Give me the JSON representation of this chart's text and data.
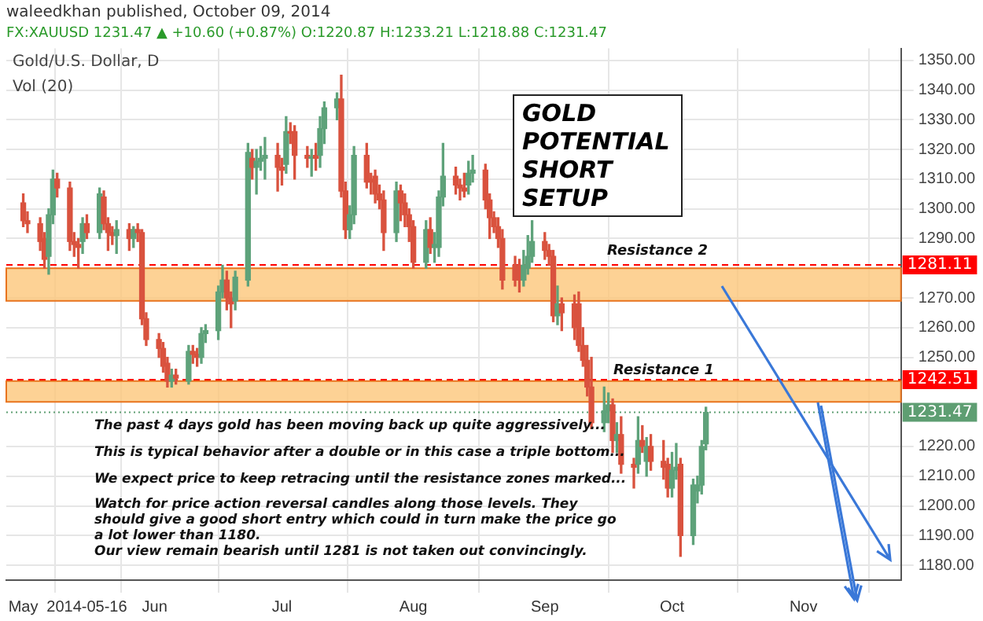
{
  "chart_data": {
    "type": "candlestick",
    "title": "waleedkhan published, October 09, 2014",
    "subtitle": "FX:XAUUSD 1231.47 ▲ +10.60 (+0.87%) O:1220.87 H:1233.21 L:1218.88 C:1231.47",
    "annotations": [
      "Gold/U.S. Dollar, D",
      "Vol (20)",
      "GOLD POTENTIAL SHORT SETUP",
      "The past 4 days gold has been moving back up quite aggressively...",
      "This is typical behavior after a double or in this case a triple bottom...",
      "We expect price to keep retracing until the resistance zones marked...",
      "Watch for price action reversal candles along those levels. They should give a good short entry which could in turn make the price go a lot lower than 1180.",
      "Our view remain bearish until 1281 is not taken out convincingly.",
      "Resistance 2",
      "Resistance 1"
    ],
    "x": [
      "2014-05-01",
      "2014-05-02",
      "2014-05-05",
      "2014-05-06",
      "2014-05-07",
      "2014-05-08",
      "2014-05-09",
      "2014-05-12",
      "2014-05-13",
      "2014-05-14",
      "2014-05-15",
      "2014-05-16",
      "2014-05-19",
      "2014-05-20",
      "2014-05-21",
      "2014-05-22",
      "2014-05-23",
      "2014-05-26",
      "2014-05-27",
      "2014-05-28",
      "2014-05-29",
      "2014-05-30",
      "2014-06-02",
      "2014-06-03",
      "2014-06-04",
      "2014-06-05",
      "2014-06-06",
      "2014-06-09",
      "2014-06-10",
      "2014-06-11",
      "2014-06-12",
      "2014-06-13",
      "2014-06-16",
      "2014-06-17",
      "2014-06-18",
      "2014-06-19",
      "2014-06-20",
      "2014-06-23",
      "2014-06-24",
      "2014-06-25",
      "2014-06-26",
      "2014-06-27",
      "2014-06-30",
      "2014-07-01",
      "2014-07-02",
      "2014-07-03",
      "2014-07-04",
      "2014-07-07",
      "2014-07-08",
      "2014-07-09",
      "2014-07-10",
      "2014-07-11",
      "2014-07-14",
      "2014-07-15",
      "2014-07-16",
      "2014-07-17",
      "2014-07-18",
      "2014-07-21",
      "2014-07-22",
      "2014-07-23",
      "2014-07-24",
      "2014-07-25",
      "2014-07-28",
      "2014-07-29",
      "2014-07-30",
      "2014-07-31",
      "2014-08-01",
      "2014-08-04",
      "2014-08-05",
      "2014-08-06",
      "2014-08-07",
      "2014-08-08",
      "2014-08-11",
      "2014-08-12",
      "2014-08-13",
      "2014-08-14",
      "2014-08-15",
      "2014-08-18",
      "2014-08-19",
      "2014-08-20",
      "2014-08-21",
      "2014-08-22",
      "2014-08-25",
      "2014-08-26",
      "2014-08-27",
      "2014-08-28",
      "2014-08-29",
      "2014-09-01",
      "2014-09-02",
      "2014-09-03",
      "2014-09-04",
      "2014-09-05",
      "2014-09-08",
      "2014-09-09",
      "2014-09-10",
      "2014-09-11",
      "2014-09-12",
      "2014-09-15",
      "2014-09-16",
      "2014-09-17",
      "2014-09-18",
      "2014-09-19",
      "2014-09-22",
      "2014-09-23",
      "2014-09-24",
      "2014-09-25",
      "2014-09-26",
      "2014-09-29",
      "2014-09-30",
      "2014-10-01",
      "2014-10-02",
      "2014-10-03",
      "2014-10-06",
      "2014-10-07",
      "2014-10-08",
      "2014-10-09"
    ],
    "ohlc": [
      [
        1302,
        1305,
        1294,
        1296
      ],
      [
        1296,
        1299,
        1292,
        1295
      ],
      [
        1295,
        1297,
        1286,
        1289
      ],
      [
        1290,
        1292,
        1280,
        1283
      ],
      [
        1284,
        1300,
        1278,
        1298
      ],
      [
        1298,
        1313,
        1295,
        1310
      ],
      [
        1310,
        1312,
        1304,
        1307
      ],
      [
        1307,
        1309,
        1286,
        1289
      ],
      [
        1289,
        1292,
        1284,
        1288
      ],
      [
        1288,
        1290,
        1280,
        1287
      ],
      [
        1289,
        1297,
        1285,
        1295
      ],
      [
        1295,
        1298,
        1290,
        1292
      ],
      [
        1292,
        1307,
        1290,
        1305
      ],
      [
        1304,
        1306,
        1293,
        1295
      ],
      [
        1295,
        1297,
        1286,
        1292
      ],
      [
        1292,
        1294,
        1288,
        1291
      ],
      [
        1291,
        1296,
        1285,
        1293
      ],
      [
        1293,
        1295,
        1286,
        1290
      ],
      [
        1290,
        1294,
        1287,
        1293
      ],
      [
        1293,
        1295,
        1289,
        1292
      ],
      [
        1292,
        1293,
        1261,
        1263
      ],
      [
        1263,
        1265,
        1254,
        1256
      ],
      [
        1256,
        1258,
        1250,
        1253
      ],
      [
        1253,
        1255,
        1245,
        1247
      ],
      [
        1248,
        1250,
        1240,
        1242
      ],
      [
        1242,
        1246,
        1240,
        1244
      ],
      [
        1244,
        1246,
        1241,
        1243
      ],
      [
        1242,
        1254,
        1241,
        1252
      ],
      [
        1252,
        1254,
        1248,
        1251
      ],
      [
        1251,
        1253,
        1247,
        1250
      ],
      [
        1250,
        1260,
        1248,
        1258
      ],
      [
        1258,
        1261,
        1255,
        1259
      ],
      [
        1259,
        1274,
        1256,
        1272
      ],
      [
        1272,
        1281,
        1270,
        1276
      ],
      [
        1276,
        1279,
        1266,
        1270
      ],
      [
        1270,
        1272,
        1260,
        1268
      ],
      [
        1269,
        1279,
        1266,
        1277
      ],
      [
        1276,
        1322,
        1274,
        1319
      ],
      [
        1317,
        1320,
        1310,
        1314
      ],
      [
        1314,
        1320,
        1305,
        1316
      ],
      [
        1316,
        1321,
        1313,
        1317
      ],
      [
        1317,
        1324,
        1310,
        1318
      ],
      [
        1318,
        1322,
        1306,
        1314
      ],
      [
        1314,
        1317,
        1308,
        1313
      ],
      [
        1315,
        1331,
        1312,
        1326
      ],
      [
        1326,
        1329,
        1322,
        1325.5
      ],
      [
        1326,
        1328,
        1310,
        1318
      ],
      [
        1318,
        1321,
        1314,
        1317
      ],
      [
        1317,
        1320,
        1311,
        1317.5
      ],
      [
        1318,
        1322,
        1313,
        1317
      ],
      [
        1318,
        1331,
        1314,
        1327
      ],
      [
        1327,
        1336,
        1322,
        1334
      ],
      [
        1334,
        1339,
        1330,
        1337
      ],
      [
        1337,
        1345,
        1304,
        1306
      ],
      [
        1306,
        1309,
        1290,
        1293
      ],
      [
        1293,
        1301,
        1290,
        1298
      ],
      [
        1298,
        1321,
        1295,
        1318
      ],
      [
        1318,
        1322,
        1307,
        1309
      ],
      [
        1310,
        1312,
        1305,
        1309
      ],
      [
        1311,
        1313,
        1302,
        1305
      ],
      [
        1305,
        1308,
        1300,
        1303
      ],
      [
        1303,
        1306,
        1286,
        1292
      ],
      [
        1292,
        1309,
        1289,
        1306
      ],
      [
        1306,
        1308,
        1296,
        1302
      ],
      [
        1302,
        1305,
        1294,
        1298
      ],
      [
        1298,
        1300,
        1289,
        1294
      ],
      [
        1294,
        1296,
        1280,
        1282
      ],
      [
        1282,
        1296,
        1280,
        1293
      ],
      [
        1293,
        1297,
        1285,
        1287
      ],
      [
        1287,
        1292,
        1282,
        1288
      ],
      [
        1287,
        1306,
        1284,
        1304
      ],
      [
        1304,
        1322,
        1301,
        1311
      ],
      [
        1311,
        1314,
        1305,
        1308
      ],
      [
        1308,
        1310,
        1303,
        1307
      ],
      [
        1307,
        1312,
        1304,
        1306
      ],
      [
        1308,
        1316,
        1305,
        1312
      ],
      [
        1312,
        1318,
        1309,
        1313
      ],
      [
        1313,
        1315,
        1300,
        1303
      ],
      [
        1303,
        1305,
        1290,
        1297
      ],
      [
        1297,
        1299,
        1292,
        1294
      ],
      [
        1294,
        1297,
        1287,
        1290
      ],
      [
        1290,
        1293,
        1273,
        1276
      ],
      [
        1281,
        1284,
        1274,
        1276
      ],
      [
        1281,
        1283,
        1272,
        1276
      ],
      [
        1276,
        1286,
        1274,
        1281
      ],
      [
        1280,
        1291,
        1278,
        1284
      ],
      [
        1284,
        1296,
        1282,
        1289
      ],
      [
        1289,
        1292,
        1283,
        1286
      ],
      [
        1286,
        1288,
        1281,
        1284
      ],
      [
        1284,
        1286,
        1262,
        1264
      ],
      [
        1264,
        1274,
        1261,
        1268
      ],
      [
        1268,
        1270,
        1259,
        1265
      ],
      [
        1268,
        1271,
        1256,
        1260
      ],
      [
        1268,
        1272,
        1252,
        1254
      ],
      [
        1254,
        1260,
        1247,
        1249
      ],
      [
        1249,
        1254,
        1237,
        1240
      ],
      [
        1240,
        1250,
        1226,
        1228
      ],
      [
        1228,
        1240,
        1225,
        1232
      ],
      [
        1232,
        1238,
        1228,
        1234
      ],
      [
        1234,
        1236,
        1218,
        1222
      ],
      [
        1222,
        1228,
        1218,
        1224
      ],
      [
        1224,
        1230,
        1211,
        1214
      ],
      [
        1214,
        1216,
        1206,
        1213
      ],
      [
        1214,
        1230,
        1211,
        1222
      ],
      [
        1222,
        1227,
        1218,
        1220
      ],
      [
        1215,
        1223,
        1210,
        1220
      ],
      [
        1220,
        1224,
        1212,
        1215
      ],
      [
        1215,
        1222,
        1209,
        1213
      ],
      [
        1214,
        1216,
        1203,
        1206
      ],
      [
        1206,
        1218,
        1203,
        1212
      ],
      [
        1212,
        1221,
        1209,
        1213
      ],
      [
        1214,
        1216,
        1183,
        1190
      ],
      [
        1190,
        1209,
        1187,
        1207
      ],
      [
        1205,
        1210,
        1201,
        1207
      ],
      [
        1207,
        1222,
        1204,
        1220
      ],
      [
        1220.87,
        1233.21,
        1218.88,
        1231.47
      ]
    ],
    "colors": [
      "#d9523e",
      "#d9523e",
      "#d9523e",
      "#d9523e",
      "#5ea27a",
      "#5ea27a",
      "#d9523e",
      "#d9523e",
      "#d9523e",
      "#d9523e",
      "#5ea27a",
      "#d9523e",
      "#5ea27a",
      "#d9523e",
      "#d9523e",
      "#d9523e",
      "#5ea27a",
      "#d9523e",
      "#5ea27a",
      "#d9523e",
      "#d9523e",
      "#d9523e",
      "#d9523e",
      "#d9523e",
      "#d9523e",
      "#5ea27a",
      "#d9523e",
      "#5ea27a",
      "#d9523e",
      "#d9523e",
      "#5ea27a",
      "#5ea27a",
      "#5ea27a",
      "#5ea27a",
      "#d9523e",
      "#d9523e",
      "#5ea27a",
      "#5ea27a",
      "#d9523e",
      "#5ea27a",
      "#5ea27a",
      "#5ea27a",
      "#d9523e",
      "#d9523e",
      "#5ea27a",
      "#d9523e",
      "#d9523e",
      "#d9523e",
      "#5ea27a",
      "#d9523e",
      "#5ea27a",
      "#5ea27a",
      "#5ea27a",
      "#d9523e",
      "#d9523e",
      "#5ea27a",
      "#5ea27a",
      "#d9523e",
      "#d9523e",
      "#d9523e",
      "#d9523e",
      "#d9523e",
      "#5ea27a",
      "#d9523e",
      "#d9523e",
      "#d9523e",
      "#d9523e",
      "#5ea27a",
      "#d9523e",
      "#5ea27a",
      "#5ea27a",
      "#5ea27a",
      "#d9523e",
      "#d9523e",
      "#d9523e",
      "#5ea27a",
      "#5ea27a",
      "#d9523e",
      "#d9523e",
      "#d9523e",
      "#d9523e",
      "#d9523e",
      "#d9523e",
      "#d9523e",
      "#5ea27a",
      "#5ea27a",
      "#5ea27a",
      "#d9523e",
      "#d9523e",
      "#d9523e",
      "#5ea27a",
      "#d9523e",
      "#d9523e",
      "#d9523e",
      "#d9523e",
      "#d9523e",
      "#d9523e",
      "#5ea27a",
      "#5ea27a",
      "#d9523e",
      "#5ea27a",
      "#d9523e",
      "#d9523e",
      "#5ea27a",
      "#d9523e",
      "#5ea27a",
      "#d9523e",
      "#d9523e",
      "#d9523e",
      "#5ea27a",
      "#5ea27a",
      "#d9523e",
      "#5ea27a",
      "#5ea27a",
      "#5ea27a",
      "#5ea27a"
    ],
    "xlim": [
      "2014-04-27",
      "2014-11-24"
    ],
    "xticks": [
      {
        "value": "2014-05-01",
        "label": "May"
      },
      {
        "value": "2014-05-16",
        "label": "2014-05-16"
      },
      {
        "value": "2014-06-01",
        "label": "Jun"
      },
      {
        "value": "2014-07-01",
        "label": "Jul"
      },
      {
        "value": "2014-08-01",
        "label": "Aug"
      },
      {
        "value": "2014-09-01",
        "label": "Sep"
      },
      {
        "value": "2014-10-01",
        "label": "Oct"
      },
      {
        "value": "2014-11-01",
        "label": "Nov"
      }
    ],
    "ylim": [
      1175,
      1354
    ],
    "yticks": [
      {
        "value": 1180,
        "label": "1180.00"
      },
      {
        "value": 1190,
        "label": "1190.00"
      },
      {
        "value": 1200,
        "label": "1200.00"
      },
      {
        "value": 1210,
        "label": "1210.00"
      },
      {
        "value": 1220,
        "label": "1220.00"
      },
      {
        "value": 1250,
        "label": "1250.00"
      },
      {
        "value": 1260,
        "label": "1260.00"
      },
      {
        "value": 1270,
        "label": "1270.00"
      },
      {
        "value": 1290,
        "label": "1290.00"
      },
      {
        "value": 1300,
        "label": "1300.00"
      },
      {
        "value": 1310,
        "label": "1310.00"
      },
      {
        "value": 1320,
        "label": "1320.00"
      },
      {
        "value": 1330,
        "label": "1330.00"
      },
      {
        "value": 1340,
        "label": "1340.00"
      },
      {
        "value": 1350,
        "label": "1350.00"
      }
    ],
    "ref_lines": [
      {
        "axis": "y",
        "value": 1281.11,
        "label": "1281.11",
        "color": "#ff0000",
        "line_style": "dashed"
      },
      {
        "axis": "y",
        "value": 1242.51,
        "label": "1242.51",
        "color": "#ff0000",
        "line_style": "dashed"
      },
      {
        "axis": "y",
        "value": 1231.47,
        "label": "1231.47",
        "color": "#5e9e72",
        "line_style": "dotted"
      }
    ],
    "bands": [
      {
        "axis": "y",
        "from": 1269,
        "to": 1280,
        "color": "#fdc77b"
      },
      {
        "axis": "y",
        "from": 1235,
        "to": 1242,
        "color": "#fdc77b"
      }
    ],
    "grid": true,
    "legend": false
  }
}
